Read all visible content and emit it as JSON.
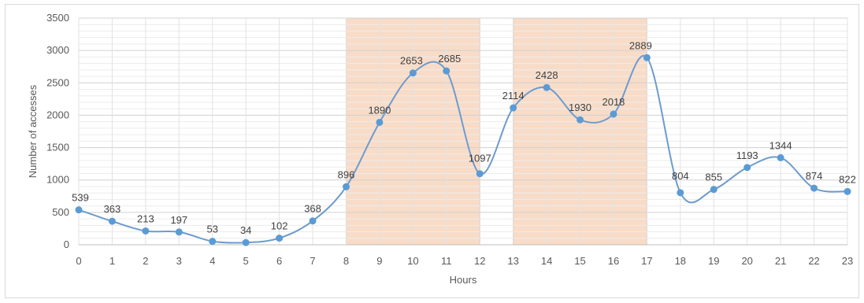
{
  "chart_data": {
    "type": "line",
    "xlabel": "Hours",
    "ylabel": "Number of accesses",
    "ylim": [
      0,
      3500
    ],
    "yticks": [
      0,
      500,
      1000,
      1500,
      2000,
      2500,
      3000,
      3500
    ],
    "categories": [
      "0",
      "1",
      "2",
      "3",
      "4",
      "5",
      "6",
      "7",
      "8",
      "9",
      "10",
      "11",
      "12",
      "13",
      "14",
      "15",
      "16",
      "17",
      "18",
      "19",
      "20",
      "21",
      "22",
      "23"
    ],
    "series": [
      {
        "values": [
          539,
          363,
          213,
          197,
          53,
          34,
          102,
          368,
          896,
          1890,
          2653,
          2685,
          1097,
          2114,
          2428,
          1930,
          2018,
          2889,
          804,
          855,
          1193,
          1344,
          874,
          822
        ]
      }
    ],
    "data_labels": [
      "539",
      "363",
      "213",
      "197",
      "53",
      "34",
      "102",
      "368",
      "896",
      "1890",
      "2653",
      "2685",
      "1097",
      "2114",
      "2428",
      "1930",
      "2018",
      "2889",
      "804",
      "855",
      "1193",
      "1344",
      "874",
      "822"
    ],
    "highlighted_ranges": [
      [
        8,
        12
      ],
      [
        13,
        17
      ]
    ],
    "grid": true,
    "line_smoothed": true,
    "colors": {
      "line": "#6d9bcf",
      "marker": "#5b9bd5",
      "highlight": "#f8dcc8",
      "highlight_border": "#d9a88a",
      "grid": "#d9d9d9"
    }
  }
}
